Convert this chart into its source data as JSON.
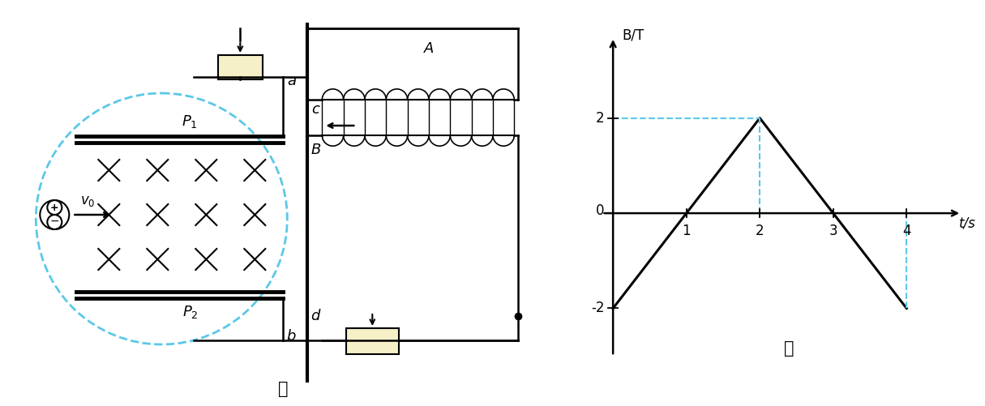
{
  "fig_width": 12.15,
  "fig_height": 5.01,
  "dpi": 100,
  "title_jia": "甲",
  "title_yi": "乙",
  "graph_line_color": "#000000",
  "dashed_color": "#5bc8e8",
  "box_fill_color": "#f5f0c8",
  "bt_line": {
    "t": [
      0,
      1,
      2,
      3,
      4
    ],
    "B": [
      -2,
      0,
      2,
      0,
      -2
    ]
  },
  "ylabel": "B/T",
  "xlabel": "t/s",
  "yticks": [
    -2,
    0,
    2
  ],
  "xticks": [
    1,
    2,
    3,
    4
  ],
  "xlim": [
    -0.3,
    4.8
  ],
  "ylim": [
    -3.2,
    3.8
  ]
}
